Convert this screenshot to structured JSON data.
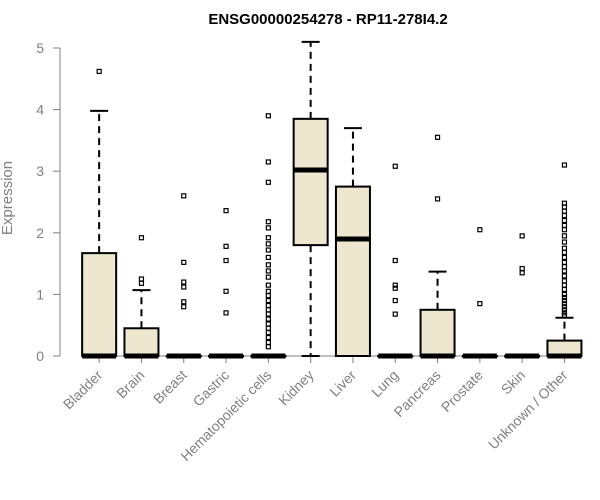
{
  "chart_data": {
    "type": "boxplot",
    "title": "ENSG00000254278 - RP11-278I4.2",
    "xlabel": "",
    "ylabel": "Expression",
    "ylim": [
      0,
      5
    ],
    "yticks": [
      0,
      1,
      2,
      3,
      4,
      5
    ],
    "box_fill": "#ede7cf",
    "categories": [
      "Bladder",
      "Brain",
      "Breast",
      "Gastric",
      "Hematopoietic cells",
      "Kidney",
      "Liver",
      "Lung",
      "Pancreas",
      "Prostate",
      "Skin",
      "Unknown / Other"
    ],
    "boxes": [
      {
        "name": "Bladder",
        "q1": 0,
        "median": 0,
        "q3": 1.67,
        "whisker_low": 0,
        "whisker_high": 3.98,
        "outliers": [
          4.62
        ]
      },
      {
        "name": "Brain",
        "q1": 0,
        "median": 0,
        "q3": 0.45,
        "whisker_low": 0,
        "whisker_high": 1.07,
        "outliers": [
          1.92,
          1.25,
          1.18
        ]
      },
      {
        "name": "Breast",
        "q1": 0,
        "median": 0,
        "q3": 0,
        "whisker_low": 0,
        "whisker_high": 0,
        "outliers": [
          2.6,
          1.52,
          1.2,
          1.12,
          0.88,
          0.8
        ]
      },
      {
        "name": "Gastric",
        "q1": 0,
        "median": 0,
        "q3": 0,
        "whisker_low": 0,
        "whisker_high": 0,
        "outliers": [
          2.36,
          1.78,
          1.55,
          1.05,
          0.7
        ]
      },
      {
        "name": "Hematopoietic cells",
        "q1": 0,
        "median": 0,
        "q3": 0,
        "whisker_low": 0,
        "whisker_high": 0,
        "outliers": [
          3.9,
          3.15,
          2.82,
          2.18,
          2.08,
          1.92,
          1.82,
          1.72,
          1.6,
          1.48,
          1.38,
          1.28,
          1.15,
          1.05,
          0.98,
          0.9,
          0.82,
          0.75,
          0.68,
          0.6,
          0.52,
          0.45,
          0.38,
          0.3,
          0.22,
          0.15
        ]
      },
      {
        "name": "Kidney",
        "q1": 1.8,
        "median": 3.02,
        "q3": 3.85,
        "whisker_low": 0,
        "whisker_high": 5.1,
        "outliers": []
      },
      {
        "name": "Liver",
        "q1": 0,
        "median": 1.9,
        "q3": 2.75,
        "whisker_low": 0,
        "whisker_high": 3.7,
        "outliers": []
      },
      {
        "name": "Lung",
        "q1": 0,
        "median": 0,
        "q3": 0,
        "whisker_low": 0,
        "whisker_high": 0,
        "outliers": [
          3.08,
          1.55,
          1.15,
          1.1,
          0.9,
          0.68
        ]
      },
      {
        "name": "Pancreas",
        "q1": 0,
        "median": 0,
        "q3": 0.75,
        "whisker_low": 0,
        "whisker_high": 1.37,
        "outliers": [
          3.55,
          2.55
        ]
      },
      {
        "name": "Prostate",
        "q1": 0,
        "median": 0,
        "q3": 0,
        "whisker_low": 0,
        "whisker_high": 0,
        "outliers": [
          2.05,
          0.85
        ]
      },
      {
        "name": "Skin",
        "q1": 0,
        "median": 0,
        "q3": 0,
        "whisker_low": 0,
        "whisker_high": 0,
        "outliers": [
          1.95,
          1.42,
          1.35
        ]
      },
      {
        "name": "Unknown / Other",
        "q1": 0,
        "median": 0,
        "q3": 0.25,
        "whisker_low": 0,
        "whisker_high": 0.62,
        "outliers": [
          3.1,
          2.48,
          2.42,
          2.35,
          2.28,
          2.2,
          2.12,
          2.05,
          1.95,
          1.85,
          1.75,
          1.68,
          1.6,
          1.52,
          1.45,
          1.38,
          1.3,
          1.22,
          1.15,
          1.08,
          1.0,
          0.95,
          0.9,
          0.85,
          0.8,
          0.75,
          0.7,
          0.66
        ]
      }
    ]
  }
}
